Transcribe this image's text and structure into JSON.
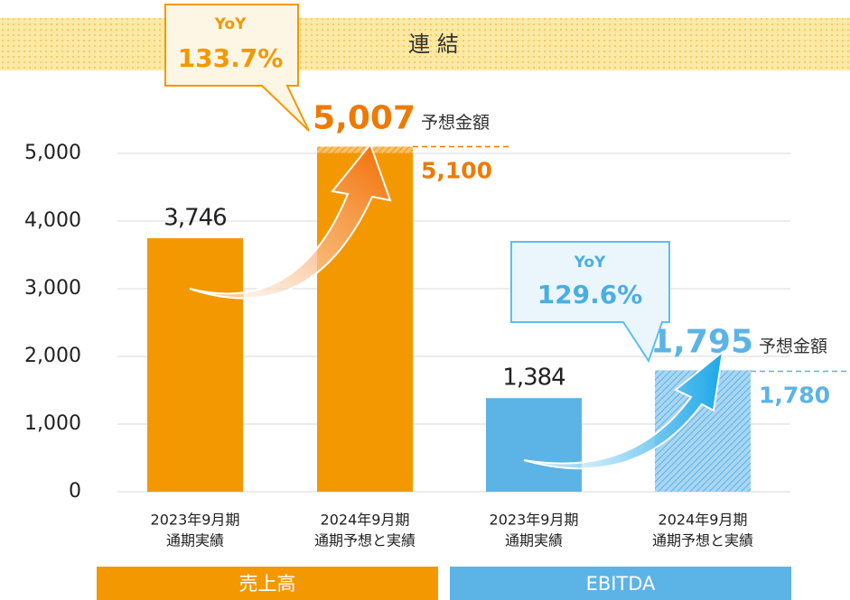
{
  "chart_data": {
    "type": "bar",
    "title": "連 結",
    "categories": [
      [
        "2023年9月期",
        "通期実績"
      ],
      [
        "2024年9月期",
        "通期予想と実績"
      ],
      [
        "2023年9月期",
        "通期実績"
      ],
      [
        "2024年9月期",
        "通期予想と実績"
      ]
    ],
    "values": [
      3746,
      5007,
      1384,
      1795
    ],
    "value_labels": [
      "3,746",
      "5,007",
      "1,384",
      "1,795"
    ],
    "colors": [
      "#f39800",
      "#f39800",
      "#5bb3e6",
      "#5bb3e6"
    ],
    "hatched": [
      false,
      false,
      false,
      true
    ],
    "forecasts": {
      "label": "予想金額",
      "values": [
        null,
        5100,
        null,
        1780
      ],
      "value_labels": [
        null,
        "5,100",
        null,
        "1,780"
      ]
    },
    "yoy": [
      {
        "label": "YoY",
        "value": 133.7,
        "value_label": "133.7%"
      },
      {
        "label": "YoY",
        "value": 129.6,
        "value_label": "129.6%"
      }
    ],
    "groups": [
      {
        "name": "売上高",
        "color": "#f39800"
      },
      {
        "name": "EBITDA",
        "color": "#5bb3e6"
      }
    ],
    "ylim": [
      0,
      5000
    ],
    "yticks": [
      0,
      {
        "value": 1000,
        "label": "1,000"
      },
      {
        "value": 2000,
        "label": "2,000"
      },
      {
        "value": 3000,
        "label": "3,000"
      },
      {
        "value": 4000,
        "label": "4,000"
      },
      {
        "value": 5000,
        "label": "5,000"
      }
    ],
    "grid": true
  }
}
